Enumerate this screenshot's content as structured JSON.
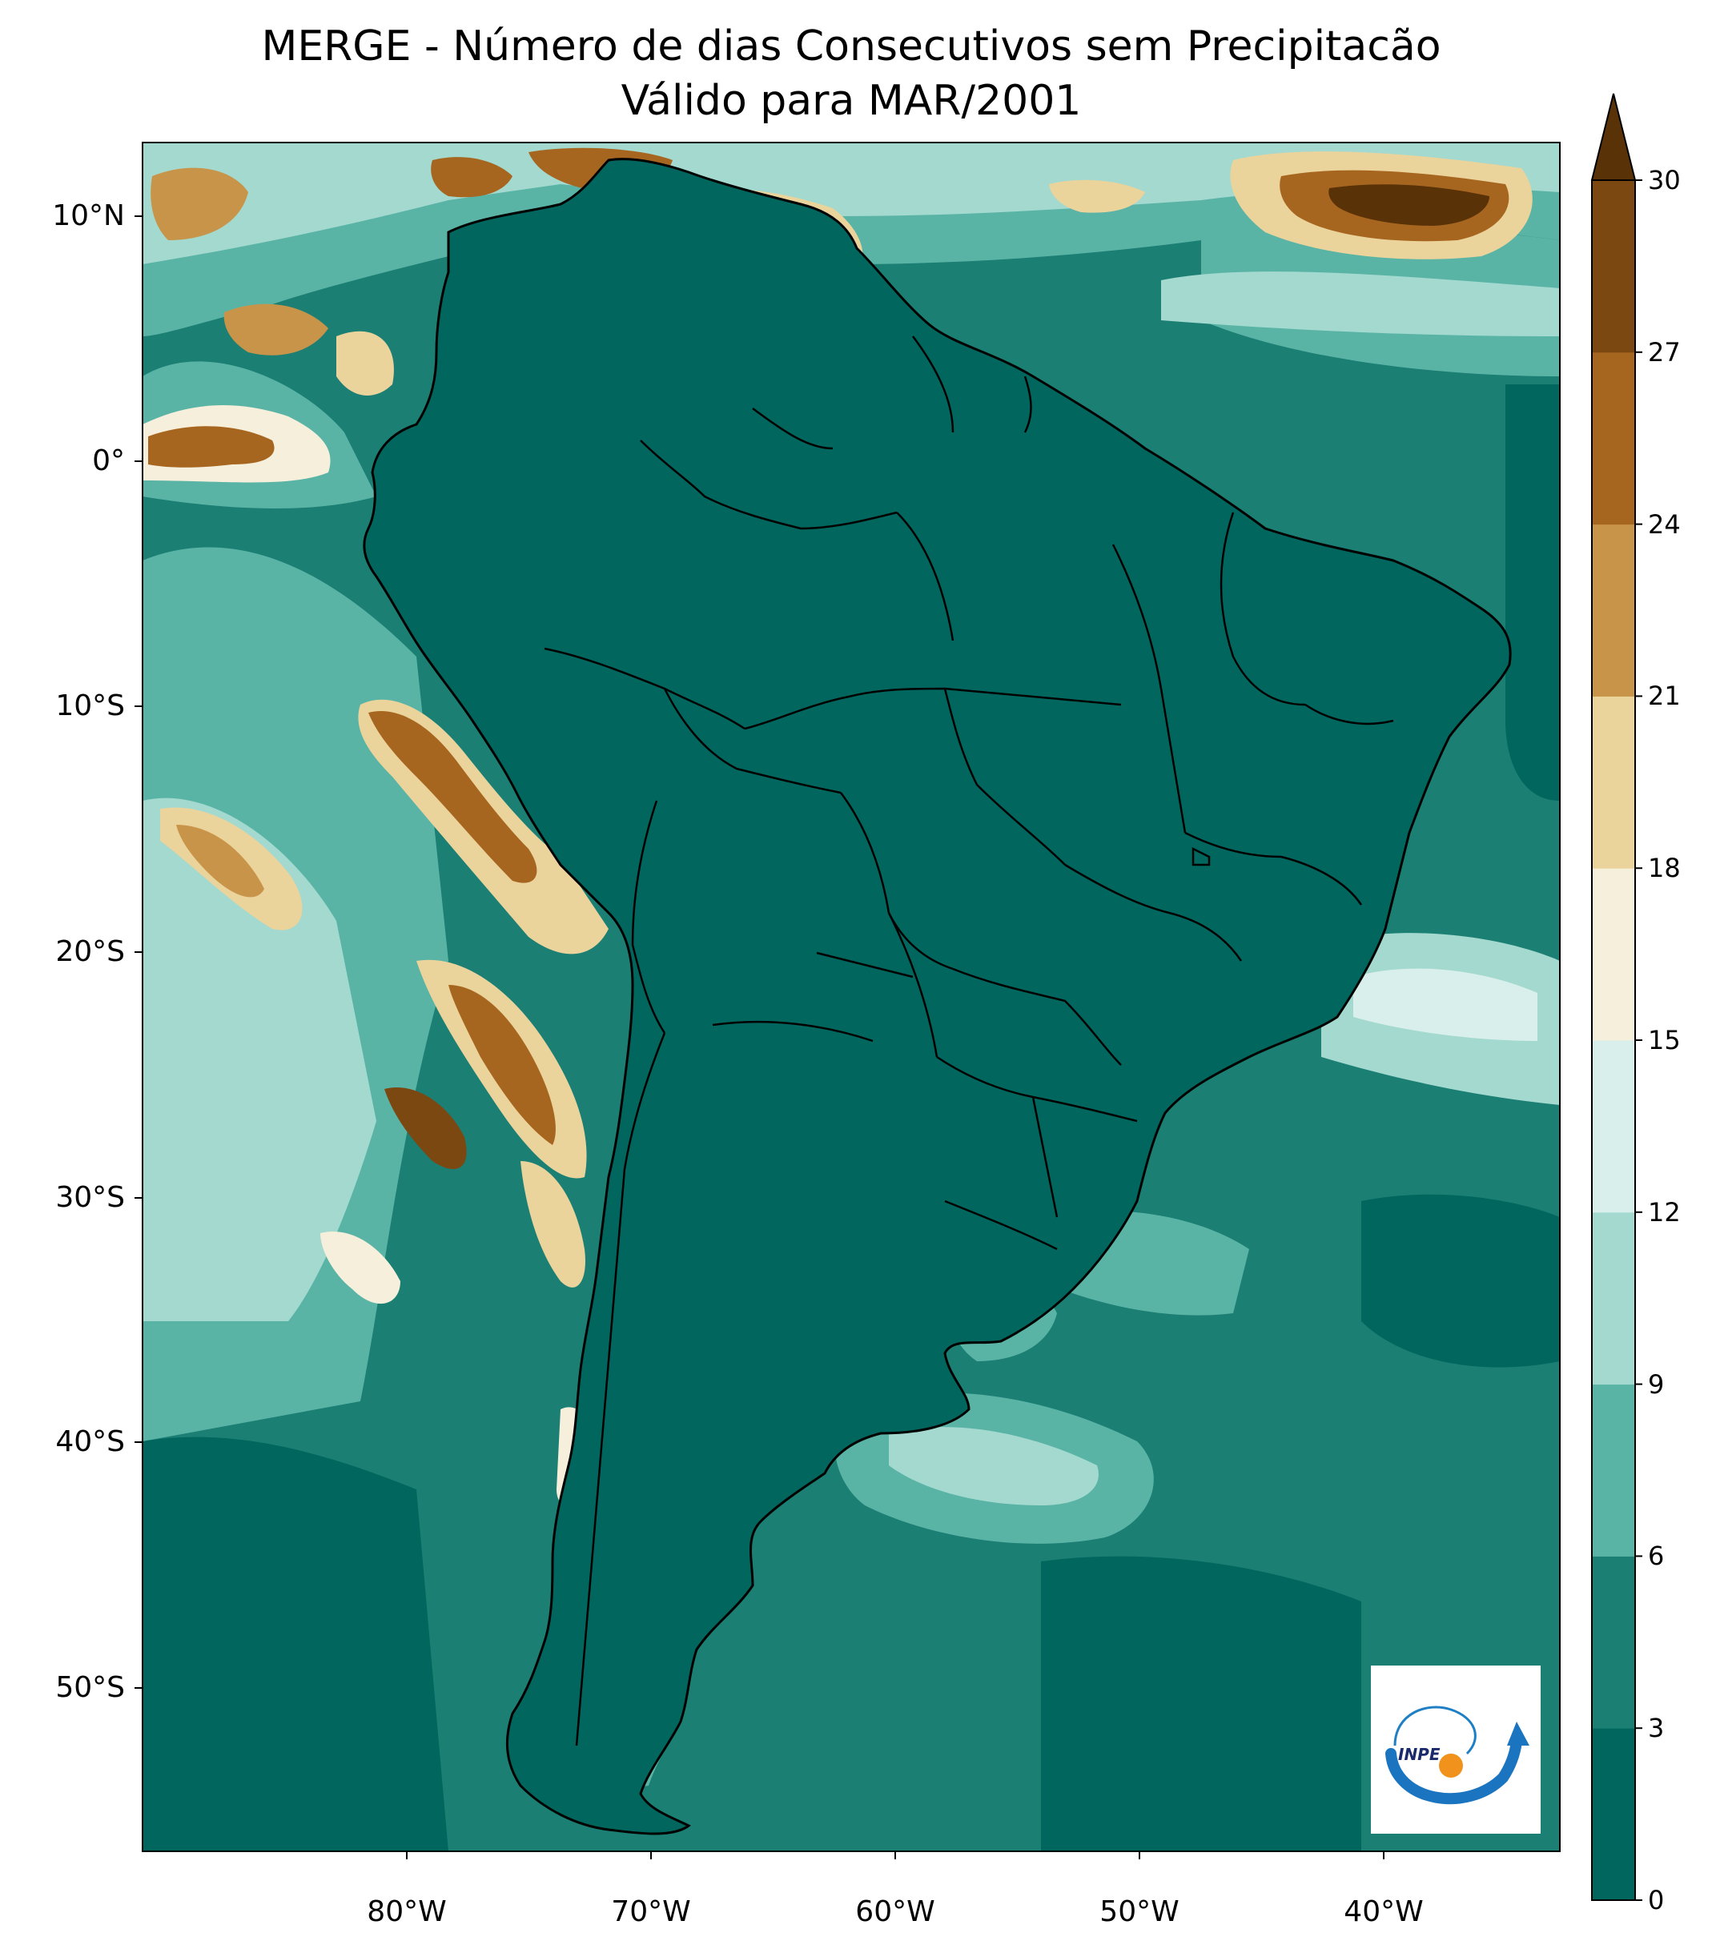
{
  "title": {
    "line1": "MERGE - Número de dias Consecutivos sem Precipitacão",
    "line2": "Válido para MAR/2001"
  },
  "axes": {
    "lat_ticks": [
      "10°N",
      "0°",
      "10°S",
      "20°S",
      "30°S",
      "40°S",
      "50°S"
    ],
    "lon_ticks": [
      "80°W",
      "70°W",
      "60°W",
      "50°W",
      "40°W"
    ]
  },
  "colorbar": {
    "tick_labels": [
      "0",
      "3",
      "6",
      "9",
      "12",
      "15",
      "18",
      "21",
      "24",
      "27",
      "30"
    ],
    "extend": "max",
    "colors": [
      "#01665e",
      "#1b7f74",
      "#5ab4a6",
      "#a3d9cf",
      "#d9efeb",
      "#f6efdc",
      "#ebd39c",
      "#c89449",
      "#a7661f",
      "#7c4812",
      "#5a3208"
    ]
  },
  "logo": {
    "text": "INPE",
    "icon": "inpe-logo-icon"
  },
  "colors": {
    "ocean_base": "#1b7f74",
    "land_dark": "#01665e",
    "border": "#000000"
  }
}
